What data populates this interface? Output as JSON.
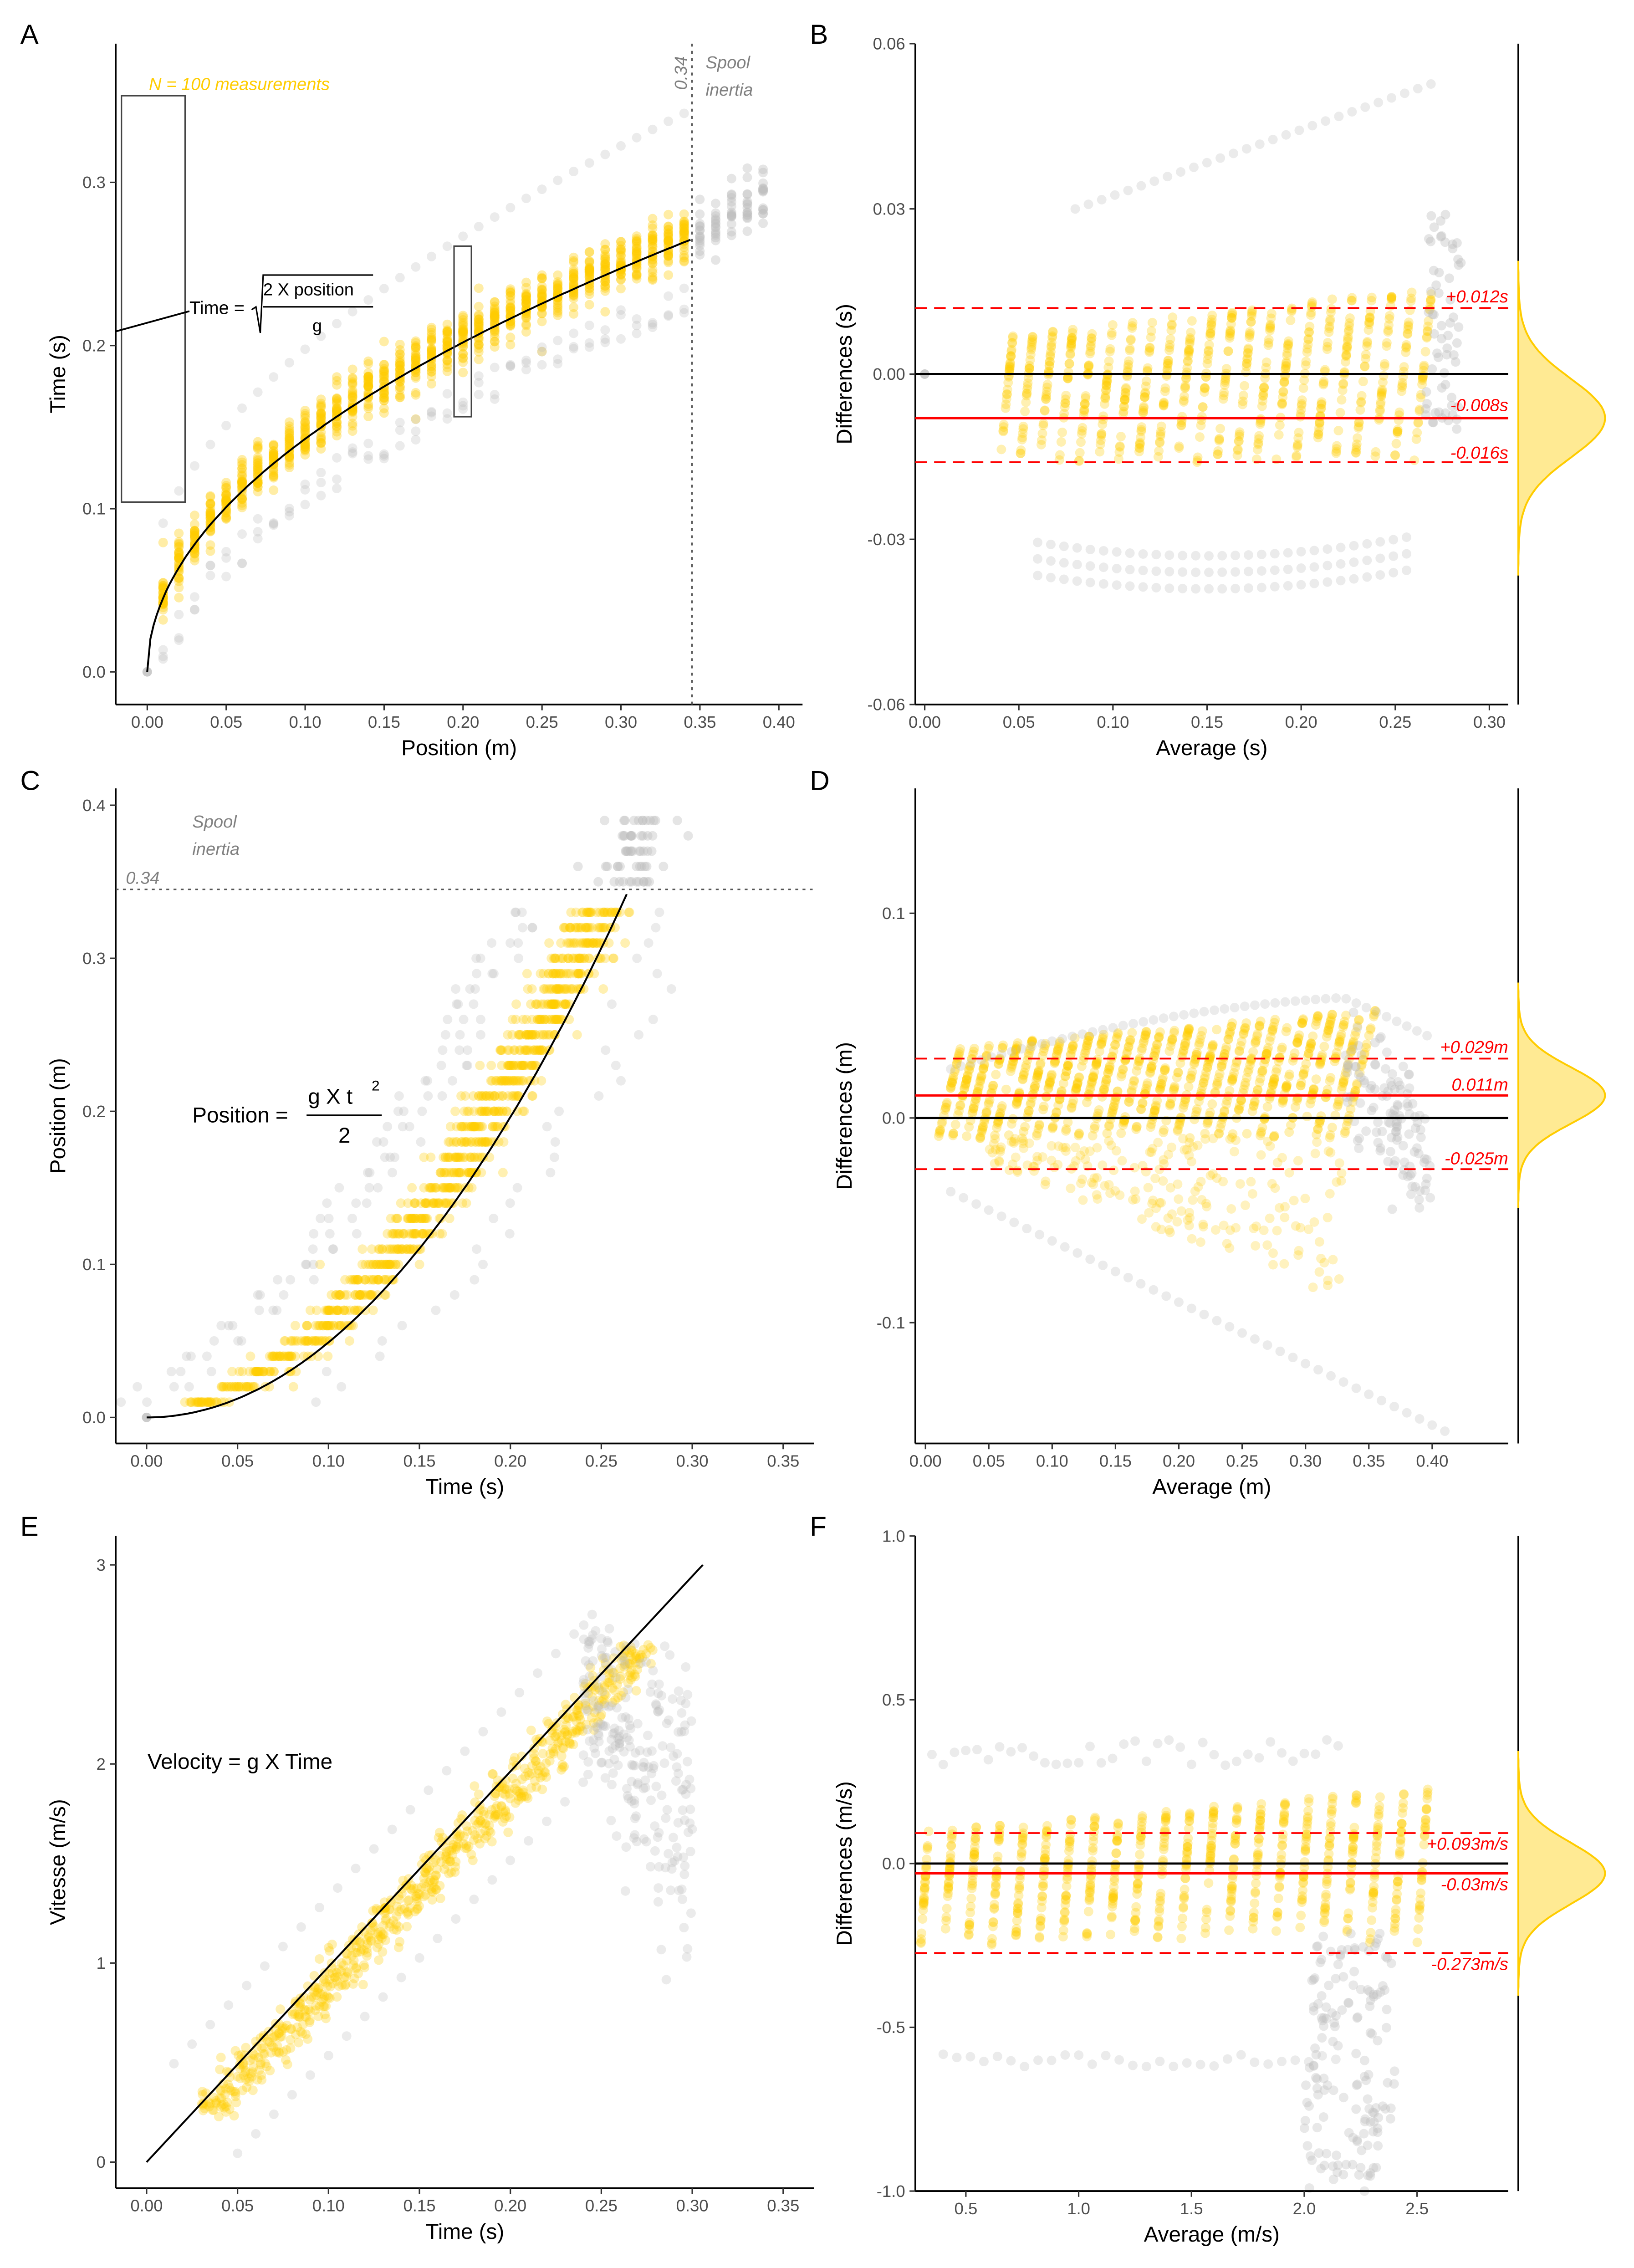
{
  "colors": {
    "yellow": "#FFCC00",
    "gray": "#BEBEBE",
    "red": "#FF0000",
    "black": "#000000",
    "density_fill": "#FFE680"
  },
  "chart_data": [
    {
      "panel": "A",
      "type": "scatter",
      "xlabel": "Position (m)",
      "ylabel": "Time (s)",
      "xlim": [
        -0.02,
        0.415
      ],
      "ylim": [
        -0.02,
        0.385
      ],
      "xticks": [
        "0.00",
        "0.05",
        "0.10",
        "0.15",
        "0.20",
        "0.25",
        "0.30",
        "0.35",
        "0.40"
      ],
      "yticks": [
        "0.0",
        "0.1",
        "0.2",
        "0.3"
      ],
      "model": "Time = sqrt(2 X position / g)",
      "g": 9.81,
      "vline": {
        "x": 0.345,
        "label": "0.34",
        "note1": "Spool",
        "note2": "inertia"
      },
      "annotation": "N = 100 measurements",
      "equation": {
        "lhs": "Time =",
        "num": "2  X  position",
        "den": "g"
      },
      "positions": [
        0.01,
        0.34
      ],
      "step": 0.01
    },
    {
      "panel": "B",
      "type": "scatter",
      "xlabel": "Average (s)",
      "ylabel": "Differences (s)",
      "xlim": [
        -0.005,
        0.31
      ],
      "ylim": [
        -0.06,
        0.06
      ],
      "xticks": [
        "0.00",
        "0.05",
        "0.10",
        "0.15",
        "0.20",
        "0.25",
        "0.30"
      ],
      "yticks": [
        "-0.06",
        "-0.03",
        "0.00",
        "0.03",
        "0.06"
      ],
      "bias": -0.008,
      "loa_upper": 0.012,
      "loa_lower": -0.016,
      "labels": {
        "upper": "+0.012s",
        "bias": "-0.008s",
        "lower": "-0.016s"
      }
    },
    {
      "panel": "C",
      "type": "scatter",
      "xlabel": "Time (s)",
      "ylabel": "Position (m)",
      "xlim": [
        -0.017,
        0.367
      ],
      "ylim": [
        -0.017,
        0.411
      ],
      "xticks": [
        "0.00",
        "0.05",
        "0.10",
        "0.15",
        "0.20",
        "0.25",
        "0.30",
        "0.35"
      ],
      "yticks": [
        "0.0",
        "0.1",
        "0.2",
        "0.3",
        "0.4"
      ],
      "hline": {
        "y": 0.345,
        "label": "0.34",
        "note1": "Spool",
        "note2": "inertia"
      },
      "equation": {
        "lhs": "Position =",
        "num": "g  X  t",
        "sup": "2",
        "den": "2"
      }
    },
    {
      "panel": "D",
      "type": "scatter",
      "xlabel": "Average (m)",
      "ylabel": "Differences (m)",
      "xlim": [
        -0.008,
        0.46
      ],
      "ylim": [
        -0.159,
        0.161
      ],
      "xticks": [
        "0.00",
        "0.05",
        "0.10",
        "0.15",
        "0.20",
        "0.25",
        "0.30",
        "0.35",
        "0.40"
      ],
      "yticks": [
        "-0.1",
        "0.0",
        "0.1"
      ],
      "bias": 0.011,
      "loa_upper": 0.029,
      "loa_lower": -0.025,
      "labels": {
        "upper": "+0.029m",
        "bias": "0.011m",
        "lower": "-0.025m"
      }
    },
    {
      "panel": "E",
      "type": "scatter",
      "xlabel": "Time (s)",
      "ylabel": "Vitesse (m/s)",
      "xlim": [
        -0.017,
        0.367
      ],
      "ylim": [
        -0.131,
        3.145
      ],
      "xticks": [
        "0.00",
        "0.05",
        "0.10",
        "0.15",
        "0.20",
        "0.25",
        "0.30",
        "0.35"
      ],
      "yticks": [
        "0",
        "1",
        "2",
        "3"
      ],
      "equation": {
        "text": "Velocity = g  X  Time"
      }
    },
    {
      "panel": "F",
      "type": "scatter",
      "xlabel": "Average (m/s)",
      "ylabel": "Differences (m/s)",
      "xlim": [
        0.276,
        2.904
      ],
      "ylim": [
        -1.0,
        1.0
      ],
      "xticks": [
        "0.5",
        "1.0",
        "1.5",
        "2.0",
        "2.5"
      ],
      "yticks": [
        "-1.0",
        "-0.5",
        "0.0",
        "0.5",
        "1.0"
      ],
      "bias": -0.03,
      "loa_upper": 0.093,
      "loa_lower": -0.273,
      "labels": {
        "upper": "+0.093m/s",
        "bias": "-0.03m/s",
        "lower": "-0.273m/s"
      }
    }
  ]
}
